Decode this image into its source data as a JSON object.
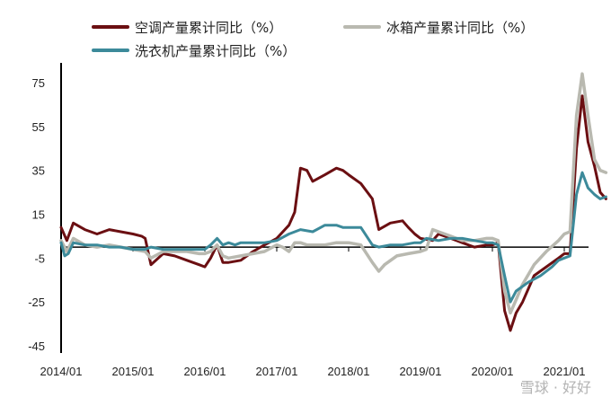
{
  "chart_data": {
    "type": "line",
    "title": "",
    "xlabel": "",
    "ylabel": "",
    "ylim": [
      -45,
      90
    ],
    "y_ticks": [
      75,
      55,
      35,
      15,
      -5,
      -25,
      -45
    ],
    "x_ticks": [
      "2014/01",
      "2015/01",
      "2016/01",
      "2017/01",
      "2018/01",
      "2019/01",
      "2020/01",
      "2021/01"
    ],
    "legend_position": "top",
    "series": [
      {
        "name": "空调产量累计同比（%）",
        "color": "#6b0f12",
        "points": [
          [
            2014.0,
            9
          ],
          [
            2014.08,
            3
          ],
          [
            2014.17,
            11
          ],
          [
            2014.33,
            8
          ],
          [
            2014.5,
            6
          ],
          [
            2014.67,
            8
          ],
          [
            2014.83,
            7
          ],
          [
            2015.0,
            6
          ],
          [
            2015.12,
            5
          ],
          [
            2015.17,
            4
          ],
          [
            2015.25,
            -8
          ],
          [
            2015.42,
            -3
          ],
          [
            2015.58,
            -4
          ],
          [
            2015.75,
            -6
          ],
          [
            2015.92,
            -8
          ],
          [
            2016.0,
            -9
          ],
          [
            2016.08,
            -5
          ],
          [
            2016.17,
            1
          ],
          [
            2016.25,
            -7
          ],
          [
            2016.33,
            -7
          ],
          [
            2016.5,
            -6
          ],
          [
            2016.67,
            -2
          ],
          [
            2016.83,
            1
          ],
          [
            2017.0,
            4
          ],
          [
            2017.17,
            10
          ],
          [
            2017.25,
            16
          ],
          [
            2017.33,
            36
          ],
          [
            2017.42,
            35
          ],
          [
            2017.5,
            30
          ],
          [
            2017.67,
            33
          ],
          [
            2017.83,
            36
          ],
          [
            2017.92,
            35
          ],
          [
            2018.0,
            33
          ],
          [
            2018.17,
            29
          ],
          [
            2018.33,
            22
          ],
          [
            2018.42,
            8
          ],
          [
            2018.58,
            11
          ],
          [
            2018.75,
            12
          ],
          [
            2018.83,
            9
          ],
          [
            2018.92,
            6
          ],
          [
            2019.0,
            4
          ],
          [
            2019.17,
            3
          ],
          [
            2019.25,
            6
          ],
          [
            2019.42,
            4
          ],
          [
            2019.58,
            2
          ],
          [
            2019.75,
            0
          ],
          [
            2019.92,
            1
          ],
          [
            2020.0,
            1
          ],
          [
            2020.08,
            2
          ],
          [
            2020.17,
            -29
          ],
          [
            2020.25,
            -38
          ],
          [
            2020.33,
            -30
          ],
          [
            2020.42,
            -25
          ],
          [
            2020.58,
            -13
          ],
          [
            2020.75,
            -9
          ],
          [
            2020.92,
            -5
          ],
          [
            2021.0,
            -3
          ],
          [
            2021.08,
            -3
          ],
          [
            2021.17,
            45
          ],
          [
            2021.25,
            69
          ],
          [
            2021.33,
            48
          ],
          [
            2021.42,
            37
          ],
          [
            2021.5,
            25
          ],
          [
            2021.58,
            22
          ]
        ]
      },
      {
        "name": "冰箱产量累计同比（%）",
        "color": "#b9b9b0",
        "points": [
          [
            2014.0,
            3
          ],
          [
            2014.08,
            -2
          ],
          [
            2014.17,
            4
          ],
          [
            2014.33,
            1
          ],
          [
            2014.5,
            0
          ],
          [
            2014.67,
            1
          ],
          [
            2014.83,
            0
          ],
          [
            2015.0,
            -1
          ],
          [
            2015.17,
            -2
          ],
          [
            2015.25,
            -5
          ],
          [
            2015.42,
            -2
          ],
          [
            2015.58,
            -2
          ],
          [
            2015.75,
            -2
          ],
          [
            2015.92,
            -3
          ],
          [
            2016.0,
            -3
          ],
          [
            2016.08,
            -2
          ],
          [
            2016.17,
            1
          ],
          [
            2016.25,
            -4
          ],
          [
            2016.33,
            -5
          ],
          [
            2016.5,
            -4
          ],
          [
            2016.67,
            -3
          ],
          [
            2016.83,
            -2
          ],
          [
            2017.0,
            1
          ],
          [
            2017.08,
            0
          ],
          [
            2017.17,
            -2
          ],
          [
            2017.25,
            2
          ],
          [
            2017.33,
            2
          ],
          [
            2017.42,
            1
          ],
          [
            2017.5,
            1
          ],
          [
            2017.67,
            1
          ],
          [
            2017.83,
            2
          ],
          [
            2017.92,
            2
          ],
          [
            2018.0,
            2
          ],
          [
            2018.17,
            1
          ],
          [
            2018.33,
            -7
          ],
          [
            2018.42,
            -11
          ],
          [
            2018.5,
            -8
          ],
          [
            2018.67,
            -4
          ],
          [
            2018.83,
            -3
          ],
          [
            2019.0,
            -2
          ],
          [
            2019.08,
            -1
          ],
          [
            2019.17,
            8
          ],
          [
            2019.25,
            7
          ],
          [
            2019.42,
            5
          ],
          [
            2019.58,
            3
          ],
          [
            2019.75,
            3
          ],
          [
            2019.92,
            4
          ],
          [
            2020.0,
            4
          ],
          [
            2020.08,
            3
          ],
          [
            2020.17,
            -20
          ],
          [
            2020.25,
            -30
          ],
          [
            2020.33,
            -24
          ],
          [
            2020.42,
            -17
          ],
          [
            2020.58,
            -8
          ],
          [
            2020.75,
            -2
          ],
          [
            2020.92,
            3
          ],
          [
            2021.0,
            6
          ],
          [
            2021.08,
            7
          ],
          [
            2021.17,
            60
          ],
          [
            2021.25,
            79
          ],
          [
            2021.33,
            60
          ],
          [
            2021.42,
            40
          ],
          [
            2021.5,
            35
          ],
          [
            2021.58,
            34
          ]
        ]
      },
      {
        "name": "洗衣机产量累计同比（%）",
        "color": "#3c8a9a",
        "points": [
          [
            2014.0,
            2
          ],
          [
            2014.05,
            -4
          ],
          [
            2014.1,
            -3
          ],
          [
            2014.17,
            2
          ],
          [
            2014.33,
            1
          ],
          [
            2014.5,
            1
          ],
          [
            2014.67,
            0
          ],
          [
            2014.83,
            0
          ],
          [
            2015.0,
            -1
          ],
          [
            2015.17,
            -1
          ],
          [
            2015.25,
            0
          ],
          [
            2015.42,
            -1
          ],
          [
            2015.58,
            -1
          ],
          [
            2015.75,
            -1
          ],
          [
            2015.92,
            -1
          ],
          [
            2016.0,
            -1
          ],
          [
            2016.08,
            1
          ],
          [
            2016.17,
            4
          ],
          [
            2016.25,
            1
          ],
          [
            2016.33,
            2
          ],
          [
            2016.42,
            1
          ],
          [
            2016.5,
            2
          ],
          [
            2016.67,
            2
          ],
          [
            2016.83,
            2
          ],
          [
            2017.0,
            3
          ],
          [
            2017.17,
            6
          ],
          [
            2017.33,
            8
          ],
          [
            2017.5,
            7
          ],
          [
            2017.67,
            10
          ],
          [
            2017.83,
            10
          ],
          [
            2017.92,
            9
          ],
          [
            2018.0,
            9
          ],
          [
            2018.17,
            9
          ],
          [
            2018.33,
            1
          ],
          [
            2018.42,
            0
          ],
          [
            2018.58,
            1
          ],
          [
            2018.75,
            1
          ],
          [
            2018.92,
            2
          ],
          [
            2019.0,
            2
          ],
          [
            2019.08,
            4
          ],
          [
            2019.25,
            3
          ],
          [
            2019.42,
            4
          ],
          [
            2019.58,
            4
          ],
          [
            2019.75,
            3
          ],
          [
            2019.92,
            2
          ],
          [
            2020.0,
            2
          ],
          [
            2020.08,
            1
          ],
          [
            2020.17,
            -13
          ],
          [
            2020.25,
            -25
          ],
          [
            2020.33,
            -20
          ],
          [
            2020.5,
            -16
          ],
          [
            2020.67,
            -13
          ],
          [
            2020.83,
            -9
          ],
          [
            2020.92,
            -6
          ],
          [
            2021.0,
            -5
          ],
          [
            2021.08,
            -4
          ],
          [
            2021.17,
            24
          ],
          [
            2021.25,
            34
          ],
          [
            2021.33,
            27
          ],
          [
            2021.42,
            24
          ],
          [
            2021.5,
            22
          ],
          [
            2021.58,
            23
          ]
        ]
      }
    ]
  },
  "watermark": "雪球 · 好好"
}
